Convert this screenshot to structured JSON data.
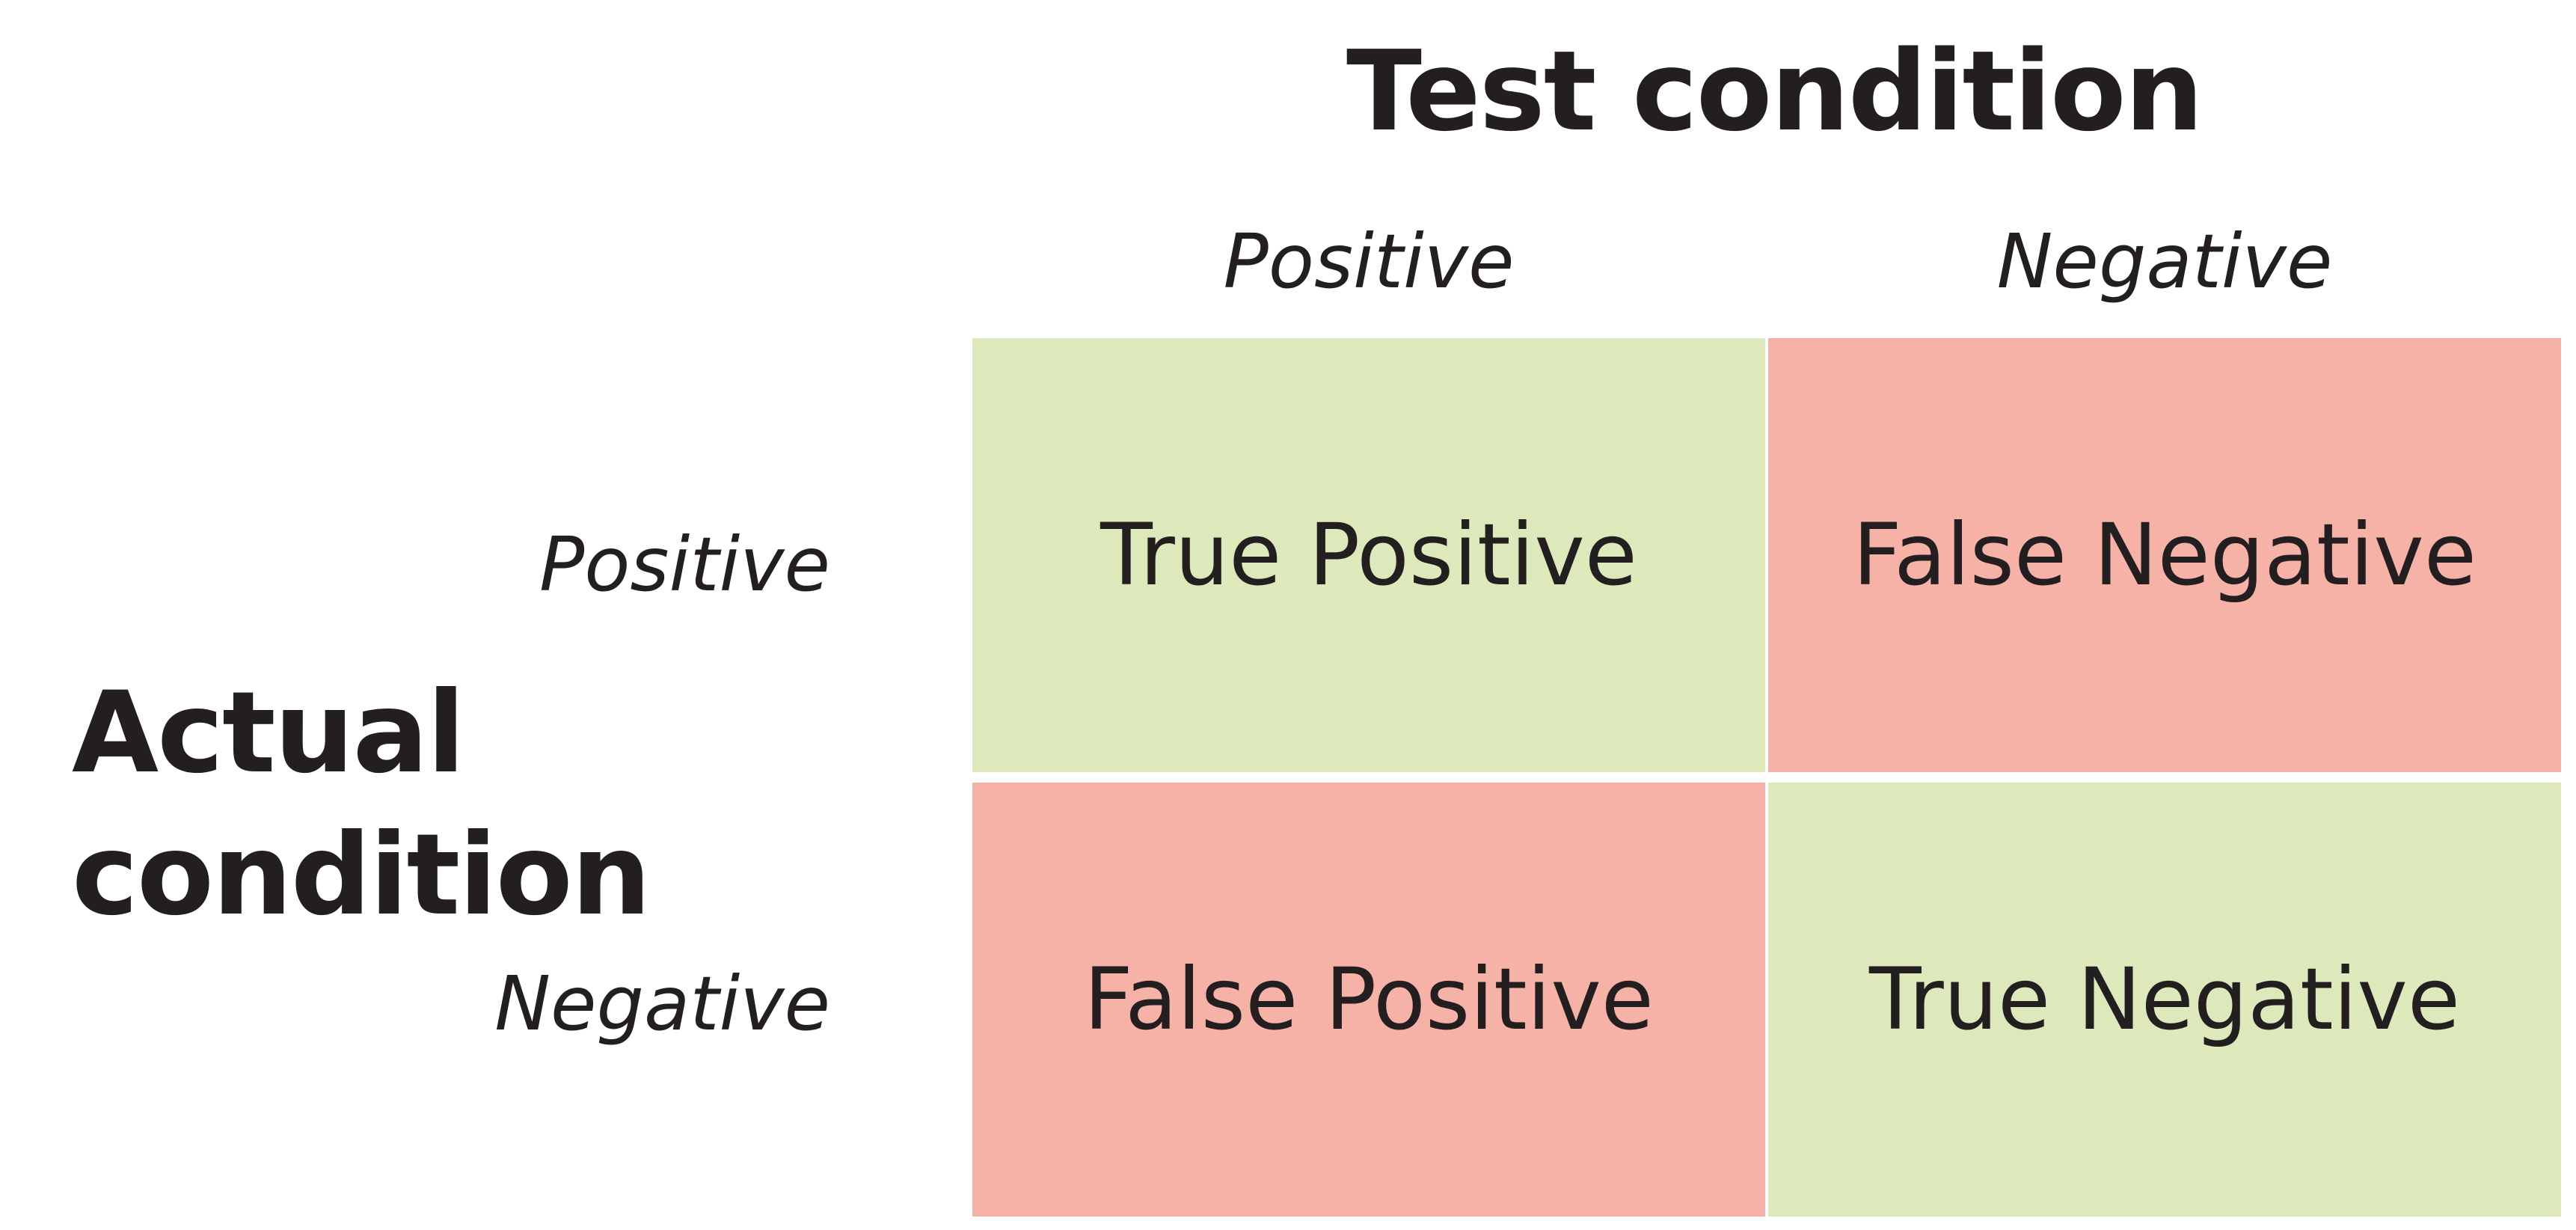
{
  "column_axis": {
    "title": "Test condition",
    "headers": [
      "Positive",
      "Negative"
    ]
  },
  "row_axis": {
    "title_lines": [
      "Actual",
      "condition"
    ],
    "headers": [
      "Positive",
      "Negative"
    ]
  },
  "matrix": {
    "cells": [
      [
        "True Positive",
        "False Negative"
      ],
      [
        "False Positive",
        "True Negative"
      ]
    ],
    "cell_kinds": [
      [
        "correct",
        "incorrect"
      ],
      [
        "incorrect",
        "correct"
      ]
    ]
  },
  "colors": {
    "correct": "#dde9bb",
    "incorrect": "#f7b2a8",
    "text": "#231f20",
    "background": "#ffffff"
  }
}
